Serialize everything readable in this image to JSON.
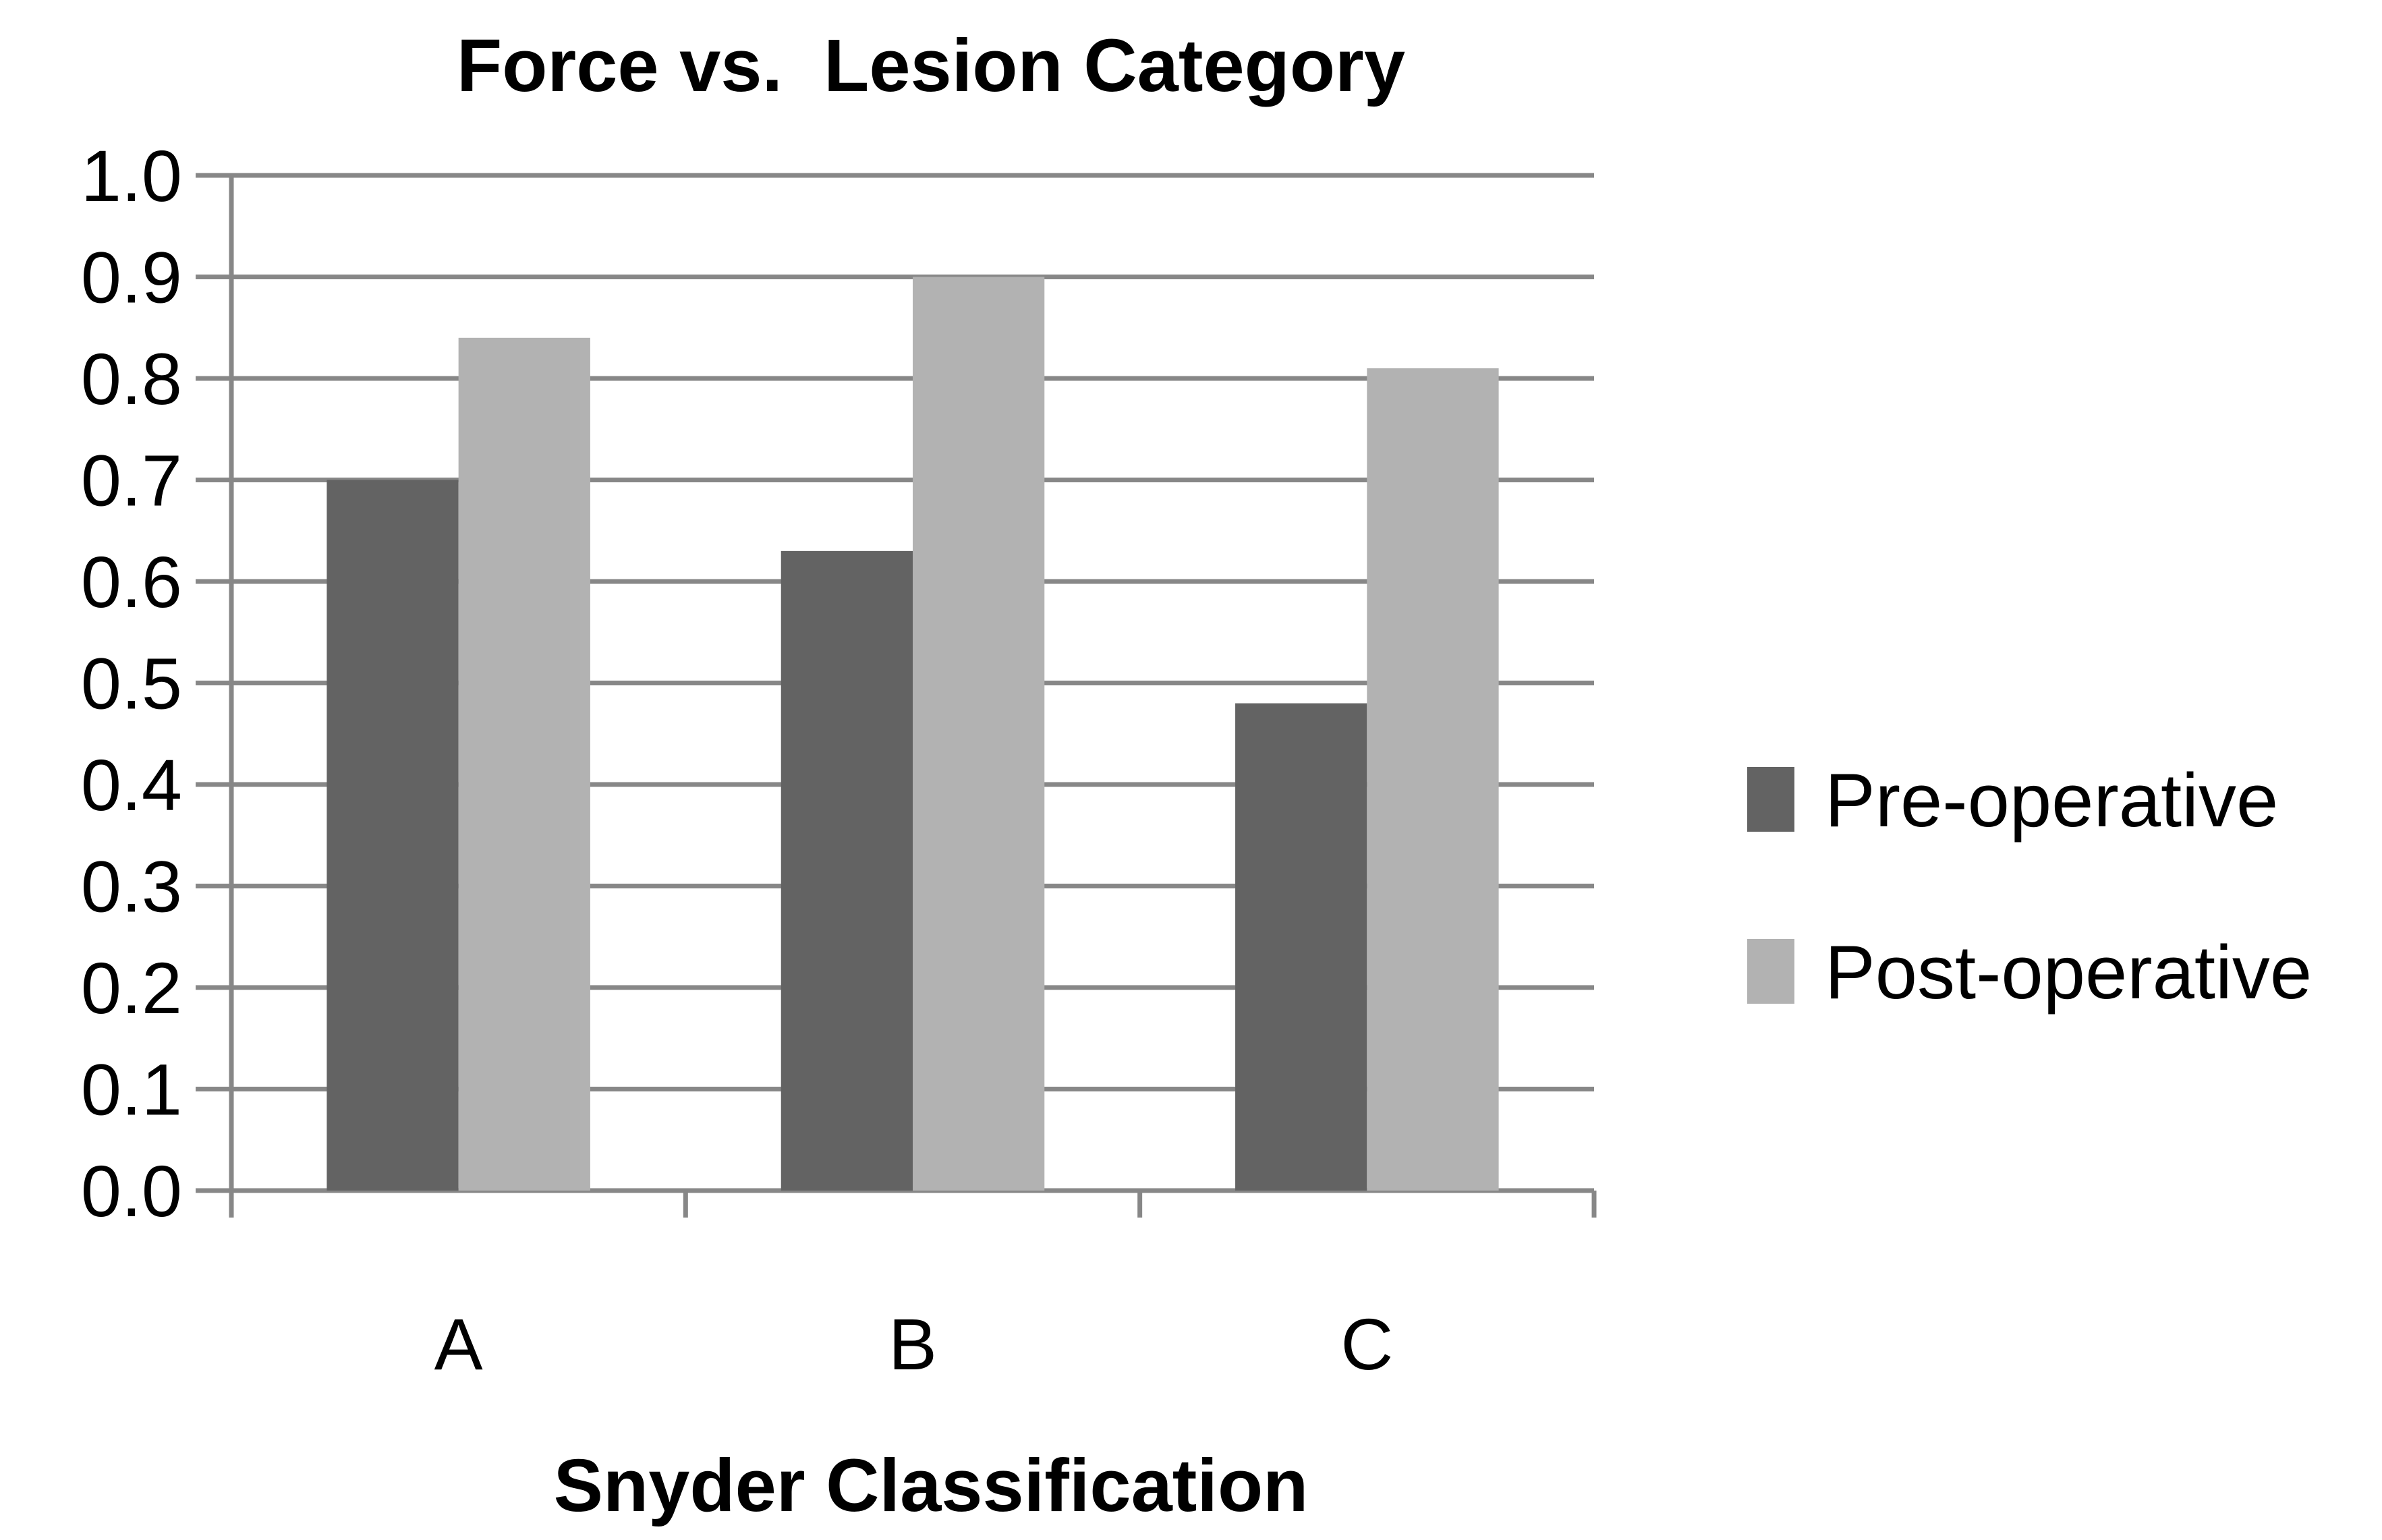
{
  "chart_data": {
    "type": "bar",
    "title": "Force vs.  Lesion Category",
    "xlabel": "Snyder Classification",
    "ylabel": "",
    "categories": [
      "A",
      "B",
      "C"
    ],
    "ylim": [
      0.0,
      1.0
    ],
    "yticks": [
      "0.0",
      "0.1",
      "0.2",
      "0.3",
      "0.4",
      "0.5",
      "0.6",
      "0.7",
      "0.8",
      "0.9",
      "1.0"
    ],
    "grid": true,
    "legend_position": "right",
    "series": [
      {
        "name": "Pre-operative",
        "color": "#636363",
        "values": [
          0.7,
          0.63,
          0.48
        ]
      },
      {
        "name": "Post-operative",
        "color": "#b2b2b2",
        "values": [
          0.84,
          0.9,
          0.81
        ]
      }
    ]
  }
}
